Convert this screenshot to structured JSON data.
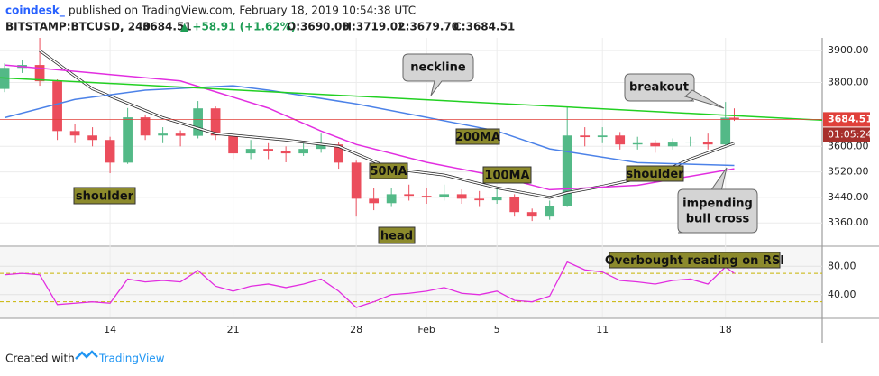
{
  "header": {
    "publisher": "coindesk_",
    "published": "published on TradingView.com, February 18, 2019 10:54:38 UTC",
    "symbol": "BITSTAMP:BTCUSD, 240",
    "last": "3684.51",
    "change": "▲ +58.91 (+1.62%)",
    "ohlc": [
      "O:3690.00",
      "H:3719.02",
      "L:3679.70",
      "C:3684.51"
    ]
  },
  "footer": {
    "created": "Created with",
    "brand": "TradingView"
  },
  "chart_data": {
    "type": "candlestick",
    "x": [
      8,
      9,
      10,
      11,
      12,
      13,
      14,
      15,
      16,
      17,
      18,
      19,
      20,
      21,
      22,
      23,
      24,
      25,
      26,
      27,
      28,
      29,
      30,
      31,
      32,
      33,
      34,
      35,
      36,
      37,
      38,
      39,
      40,
      41,
      42,
      43,
      44,
      45,
      46,
      47,
      48,
      49,
      49.5
    ],
    "open": [
      3780,
      3846,
      3855,
      3804,
      3648,
      3634,
      3620,
      3549,
      3691,
      3634,
      3640,
      3633,
      3719,
      3634,
      3578,
      3592,
      3585,
      3578,
      3592,
      3606,
      3549,
      3436,
      3422,
      3450,
      3445,
      3442,
      3450,
      3436,
      3431,
      3440,
      3394,
      3380,
      3414,
      3634,
      3629,
      3634,
      3606,
      3610,
      3600,
      3612,
      3615,
      3606,
      3690
    ],
    "high": [
      3860,
      3870,
      3940,
      3810,
      3670,
      3660,
      3630,
      3720,
      3700,
      3660,
      3650,
      3742,
      3725,
      3640,
      3620,
      3610,
      3600,
      3610,
      3640,
      3615,
      3555,
      3470,
      3470,
      3480,
      3470,
      3480,
      3465,
      3460,
      3470,
      3450,
      3405,
      3430,
      3725,
      3660,
      3660,
      3645,
      3630,
      3620,
      3625,
      3630,
      3640,
      3739,
      3719.02
    ],
    "low": [
      3770,
      3830,
      3790,
      3620,
      3610,
      3600,
      3516,
      3545,
      3620,
      3610,
      3600,
      3625,
      3620,
      3560,
      3560,
      3560,
      3550,
      3570,
      3580,
      3530,
      3380,
      3400,
      3410,
      3430,
      3420,
      3430,
      3420,
      3410,
      3420,
      3380,
      3366,
      3370,
      3410,
      3600,
      3610,
      3590,
      3590,
      3580,
      3590,
      3600,
      3590,
      3600,
      3679.7
    ],
    "close": [
      3846,
      3855,
      3804,
      3648,
      3634,
      3620,
      3549,
      3691,
      3634,
      3640,
      3633,
      3719,
      3634,
      3578,
      3592,
      3585,
      3578,
      3592,
      3606,
      3549,
      3436,
      3422,
      3450,
      3445,
      3442,
      3450,
      3436,
      3431,
      3440,
      3394,
      3380,
      3414,
      3634,
      3629,
      3634,
      3606,
      3610,
      3600,
      3612,
      3615,
      3606,
      3690,
      3684.51
    ],
    "up_color": "#53b987",
    "down_color": "#eb4d5c",
    "xlim": [
      7.74,
      54.5
    ],
    "xticks": [
      14,
      21,
      28,
      {
        "value": 32,
        "label": "Feb"
      },
      {
        "value": 36,
        "label": "5"
      },
      {
        "value": 42,
        "label": "11"
      },
      {
        "value": 49,
        "label": "18"
      }
    ],
    "ylim": [
      3290,
      3940
    ],
    "yticks": [
      {
        "value": 3360,
        "label": "3360.00"
      },
      {
        "value": 3440,
        "label": "3440.00"
      },
      {
        "value": 3520,
        "label": "3520.00"
      },
      {
        "value": 3600,
        "label": "3600.00"
      },
      {
        "value": 3800,
        "label": "3800.00"
      },
      {
        "value": 3900,
        "label": "3900.00"
      }
    ],
    "grid": true,
    "lines": [
      {
        "color": "#ffffff",
        "x": [
          10,
          13,
          17,
          20,
          24,
          27,
          30,
          33,
          36,
          39,
          40,
          42,
          45,
          47,
          49.5
        ],
        "values": [
          3900,
          3780,
          3690,
          3640,
          3620,
          3600,
          3530,
          3510,
          3470,
          3440,
          3455,
          3475,
          3510,
          3560,
          3610
        ]
      },
      {
        "color": "#e22ee0",
        "x": [
          8,
          13,
          18,
          23,
          26,
          28,
          32,
          36,
          39,
          44,
          49.5
        ],
        "values": [
          3855,
          3830,
          3805,
          3720,
          3648,
          3606,
          3550,
          3507,
          3464,
          3478,
          3530
        ]
      },
      {
        "color": "#4c82e8",
        "x": [
          8,
          12,
          16,
          21,
          23,
          28,
          32,
          36,
          39,
          44,
          49.5
        ],
        "values": [
          3690,
          3747,
          3776,
          3790,
          3776,
          3733,
          3691,
          3648,
          3592,
          3549,
          3540
        ]
      },
      {
        "color": "#22d022",
        "x": [
          7.74,
          54.5
        ],
        "values": [
          3815,
          3682
        ]
      }
    ],
    "last_price": 3684.51,
    "last_color": "#e0403a",
    "countdown": "01:05:24",
    "annotations": {
      "neckline": "neckline",
      "breakout": "breakout",
      "ma200": "200MA",
      "ma50": "50MA",
      "ma100": "100MA",
      "shoulder_left": "shoulder",
      "shoulder_right": "shoulder",
      "head": "head",
      "bull_cross": [
        "impending",
        "bull cross"
      ],
      "rsi_note": "Overbought reading on RSI"
    },
    "rsi": {
      "color": "#e22ee0",
      "values": [
        68,
        70,
        68,
        26,
        28,
        30,
        28,
        62,
        58,
        60,
        58,
        74,
        52,
        45,
        52,
        55,
        50,
        55,
        62,
        45,
        22,
        30,
        40,
        42,
        45,
        50,
        42,
        40,
        45,
        32,
        30,
        38,
        86,
        75,
        72,
        60,
        58,
        55,
        60,
        62,
        55,
        79,
        70
      ],
      "ylim": [
        8,
        107
      ],
      "yticks": [
        {
          "value": 40,
          "label": "40.00"
        },
        {
          "value": 80,
          "label": "80.00"
        }
      ],
      "bands": [
        30,
        70
      ],
      "band_color": "#c8b400"
    }
  }
}
